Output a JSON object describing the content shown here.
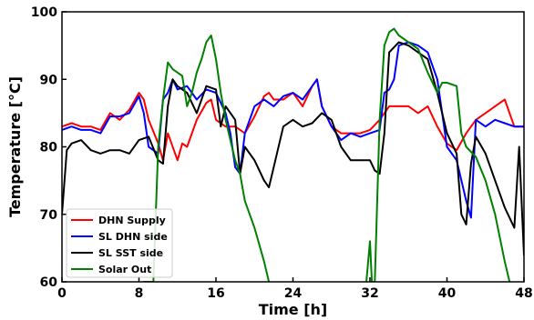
{
  "chart_data": {
    "type": "line",
    "title": "",
    "xlabel": "Time [h]",
    "ylabel": "Temperature [°C]",
    "xlim": [
      0,
      48
    ],
    "ylim": [
      60,
      100
    ],
    "xticks": [
      0,
      8,
      16,
      24,
      32,
      40,
      48
    ],
    "yticks": [
      60,
      70,
      80,
      90,
      100
    ],
    "grid": false,
    "legend_position": "bottom-left",
    "series": [
      {
        "name": "DHN Supply",
        "color": "#ff0000",
        "x": [
          0,
          1,
          2,
          3,
          4,
          5,
          6,
          7,
          8,
          8.5,
          9,
          10,
          10.5,
          11,
          12,
          12.5,
          13,
          14,
          15,
          15.5,
          16,
          17,
          18,
          19,
          20,
          21,
          21.5,
          22,
          23,
          24,
          25,
          26,
          26.5,
          27,
          28,
          29,
          30,
          31,
          32,
          33,
          34,
          35,
          36,
          37,
          38,
          39,
          40,
          41,
          42,
          43,
          44,
          45,
          46,
          47,
          48
        ],
        "y": [
          83,
          83.5,
          83,
          83,
          82.5,
          85,
          84,
          85.5,
          88,
          87,
          84,
          80.5,
          78,
          82,
          78,
          80.5,
          80,
          84,
          86.5,
          87,
          84,
          83,
          83,
          82,
          84.5,
          87.5,
          88,
          87,
          87,
          88,
          86,
          89,
          90,
          86,
          83,
          82,
          82,
          82,
          82.5,
          84,
          86,
          86,
          86,
          85,
          86,
          83,
          80.5,
          79.5,
          82,
          84,
          85,
          86,
          87,
          83,
          83
        ]
      },
      {
        "name": "SL DHN side",
        "color": "#0000ff",
        "x": [
          0,
          1,
          2,
          3,
          4,
          5,
          6,
          7,
          8,
          8.5,
          9,
          10,
          10.5,
          11,
          11.5,
          12,
          13,
          14,
          15,
          16,
          17,
          17.5,
          18,
          18.5,
          19,
          20,
          21,
          22,
          23,
          24,
          25,
          26,
          26.5,
          27,
          28,
          29,
          30,
          31,
          32,
          33,
          33.5,
          34,
          34.5,
          35,
          36,
          37,
          38,
          39,
          40,
          41,
          42,
          42.5,
          43,
          44,
          45,
          46,
          47,
          48
        ],
        "y": [
          82.5,
          83,
          82.5,
          82.5,
          82,
          84.5,
          84.5,
          85,
          87.5,
          85,
          80,
          79,
          87,
          88,
          90,
          88.5,
          89,
          87,
          88.5,
          88,
          85,
          82,
          77,
          76,
          82,
          86,
          87,
          86,
          87.5,
          88,
          87,
          89,
          90,
          86,
          83,
          81,
          82,
          81.5,
          82,
          82.5,
          88,
          88.5,
          90,
          95,
          95.5,
          95,
          94,
          90,
          80,
          78,
          72,
          69.5,
          84,
          83,
          84,
          83.5,
          83,
          83
        ]
      },
      {
        "name": "SL SST side",
        "color": "#000000",
        "x": [
          0,
          0.5,
          1,
          2,
          3,
          4,
          5,
          6,
          7,
          8,
          9,
          10,
          10.5,
          11,
          11.5,
          12,
          13,
          14,
          15,
          16,
          16.5,
          17,
          18,
          18.5,
          19,
          20,
          21,
          21.5,
          22,
          23,
          24,
          25,
          26,
          27,
          28,
          29,
          30,
          31,
          32,
          32.5,
          33,
          33.5,
          34,
          35,
          36,
          37,
          38,
          39,
          40,
          41,
          41.5,
          42,
          42.5,
          43,
          44,
          45,
          46,
          47,
          47.5,
          48
        ],
        "y": [
          70,
          79.5,
          80.5,
          81,
          79.5,
          79,
          79.5,
          79.5,
          79,
          81,
          81.5,
          78,
          77.5,
          86,
          90,
          89,
          88,
          85,
          89,
          88.5,
          83,
          86,
          84,
          76,
          80,
          78,
          75,
          74,
          77,
          83,
          84,
          83,
          83.5,
          85,
          84,
          80,
          78,
          78,
          78,
          76.5,
          76,
          82,
          94,
          95.5,
          95,
          94,
          93,
          88,
          82,
          79,
          70,
          68.5,
          77.5,
          81.5,
          79,
          75,
          71,
          68,
          80,
          64
        ]
      },
      {
        "name": "Solar Out",
        "color": "#008000",
        "x": [
          8.5,
          9.5,
          10,
          10.5,
          11,
          11.5,
          12,
          12.5,
          13,
          13.5,
          14,
          14.5,
          15,
          15.5,
          16,
          16.5,
          17,
          17.5,
          18,
          18.5,
          19,
          20,
          21,
          21.5,
          22,
          31.5,
          32,
          32.2,
          32.5,
          33,
          33.5,
          34,
          34.5,
          35,
          36,
          37,
          38,
          39,
          39.5,
          40,
          41,
          41.5,
          42,
          43,
          44,
          45,
          46,
          46.5
        ],
        "y": [
          60,
          60,
          80,
          87,
          92.5,
          91.5,
          91,
          90.5,
          86,
          88,
          91,
          93,
          95.5,
          96.5,
          93,
          88,
          84,
          81,
          78,
          76,
          72,
          68,
          63,
          60,
          58,
          58,
          66,
          60,
          60,
          84,
          95,
          97,
          97.5,
          96.5,
          95.5,
          94.5,
          91,
          88,
          89.5,
          89.5,
          89,
          82,
          80,
          78.5,
          75,
          70,
          63,
          60
        ]
      }
    ]
  }
}
